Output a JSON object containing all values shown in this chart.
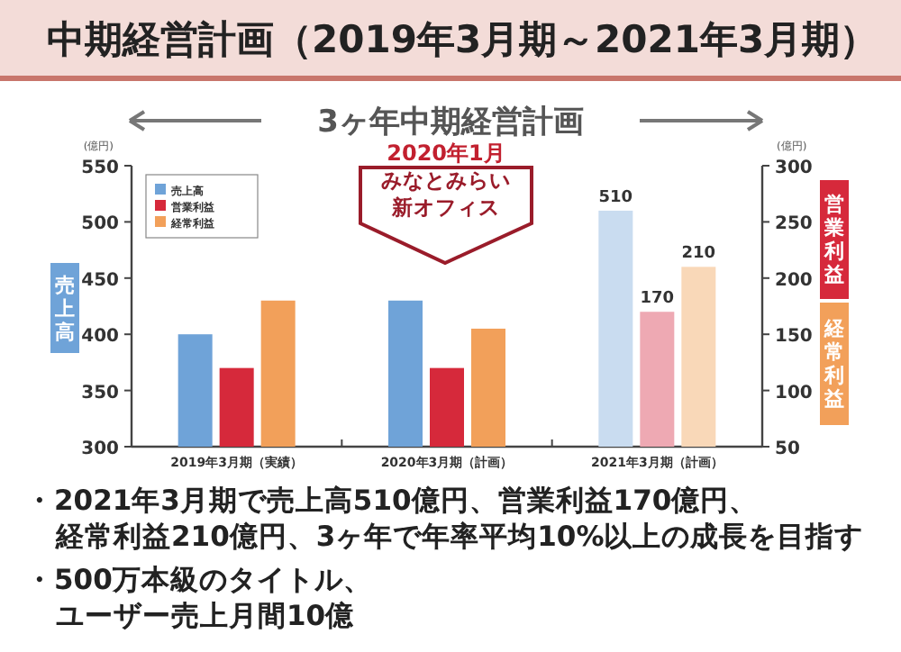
{
  "chart_data": {
    "type": "bar",
    "title": "中期経営計画（2019年3月期～2021年3月期）",
    "subtitle": "3ヶ年中期経営計画",
    "categories": [
      "2019年3月期（実績）",
      "2020年3月期（計画）",
      "2021年3月期（計画）"
    ],
    "series": [
      {
        "name": "売上高",
        "color": "#6fa3d8",
        "colors": [
          "#6fa3d8",
          "#6fa3d8",
          "#c9dcf0"
        ],
        "values": [
          400,
          430,
          510
        ],
        "value_labels": [
          null,
          null,
          "510"
        ]
      },
      {
        "name": "営業利益",
        "color": "#d6293b",
        "colors": [
          "#d6293b",
          "#d6293b",
          "#eea9b3"
        ],
        "values": [
          120,
          120,
          170
        ],
        "value_labels": [
          null,
          null,
          "170"
        ],
        "axis": "y2"
      },
      {
        "name": "経常利益",
        "color": "#f2a05a",
        "colors": [
          "#f2a05a",
          "#f2a05a",
          "#f9d8b8"
        ],
        "values": [
          180,
          155,
          210
        ],
        "value_labels": [
          null,
          null,
          "210"
        ],
        "axis": "y2"
      }
    ],
    "ylabel": "(億円)",
    "y2label": "(億円)",
    "ylim": [
      300,
      550
    ],
    "yticks": [
      300,
      350,
      400,
      450,
      500,
      550
    ],
    "y2lim": [
      50,
      300
    ],
    "y2ticks": [
      50,
      100,
      150,
      200,
      250,
      300
    ],
    "legend": "top left",
    "grid": false,
    "annotations": [
      "2020年1月",
      "みなとみらい",
      "新オフィス",
      "売上高",
      "営業利益",
      "経常利益",
      "・2021年3月期で売上高510億円、営業利益170億円、",
      "経常利益210億円、3ヶ年で年率平均10%以上の成長を目指す",
      "・500万本級のタイトル、",
      "ユーザー売上月間10億"
    ]
  }
}
